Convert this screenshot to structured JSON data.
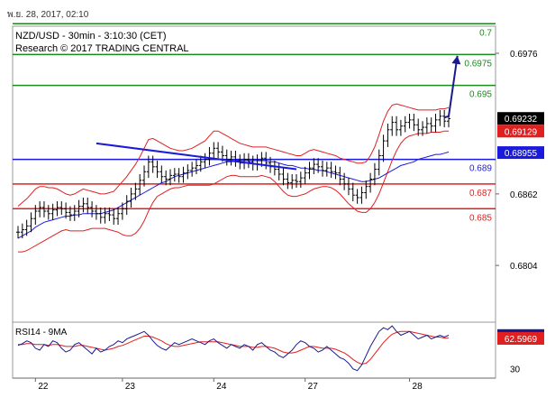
{
  "page": {
    "timestamp": "พ.ย. 28, 2017, 02:10"
  },
  "chart_data": {
    "type": "line",
    "title": "NZD/USD - 30min - 3:10:30 (CET)",
    "subtitle": "Research © 2017 TRADING CENTRAL",
    "x_ticks": [
      "22",
      "23",
      "24",
      "27",
      "28"
    ],
    "price_axis": {
      "ylim": [
        0.6758,
        0.6998
      ],
      "ticks": [
        0.6976,
        0.6862,
        0.6804
      ]
    },
    "current_price": {
      "value": 0.69232,
      "label": "0.69232",
      "color": "#000000"
    },
    "secondary_tag": {
      "value": 0.69129,
      "label": "0.69129",
      "color": "#e02020"
    },
    "ma_tag": {
      "value": 0.68955,
      "label": "0.68955",
      "color": "#1a1adc"
    },
    "levels": [
      {
        "value": 0.7,
        "label": "0.7",
        "color": "#1e8a1e"
      },
      {
        "value": 0.6975,
        "label": "0.6975",
        "color": "#1e8a1e"
      },
      {
        "value": 0.695,
        "label": "0.695",
        "color": "#1e8a1e"
      },
      {
        "value": 0.689,
        "label": "0.689",
        "color": "#1a1adc"
      },
      {
        "value": 0.687,
        "label": "0.687",
        "color": "#e02020"
      },
      {
        "value": 0.685,
        "label": "0.685",
        "color": "#e02020"
      }
    ],
    "close_series": [
      0.6831,
      0.6833,
      0.6836,
      0.6842,
      0.6848,
      0.6851,
      0.6848,
      0.6846,
      0.6849,
      0.6851,
      0.685,
      0.6847,
      0.6845,
      0.6848,
      0.6852,
      0.6854,
      0.6851,
      0.6848,
      0.6846,
      0.6843,
      0.6846,
      0.6845,
      0.6842,
      0.6846,
      0.685,
      0.6856,
      0.6862,
      0.6866,
      0.6873,
      0.688,
      0.6888,
      0.6884,
      0.688,
      0.6876,
      0.6874,
      0.6877,
      0.6878,
      0.6876,
      0.6879,
      0.6881,
      0.6883,
      0.6885,
      0.6888,
      0.689,
      0.6895,
      0.6899,
      0.6896,
      0.6893,
      0.689,
      0.6892,
      0.6889,
      0.6887,
      0.689,
      0.6888,
      0.6886,
      0.6889,
      0.6891,
      0.6887,
      0.6884,
      0.6882,
      0.6878,
      0.6874,
      0.6871,
      0.6873,
      0.6872,
      0.6875,
      0.6879,
      0.6883,
      0.6886,
      0.6884,
      0.6881,
      0.6883,
      0.688,
      0.6879,
      0.6874,
      0.687,
      0.6866,
      0.6861,
      0.6859,
      0.6863,
      0.6868,
      0.6874,
      0.6882,
      0.6893,
      0.6905,
      0.6914,
      0.692,
      0.6914,
      0.6917,
      0.692,
      0.6922,
      0.6918,
      0.6914,
      0.6916,
      0.6919,
      0.6917,
      0.6922,
      0.6925,
      0.6921,
      0.6923
    ],
    "ma_series": [
      0.6826,
      0.6828,
      0.683,
      0.6832,
      0.6835,
      0.6837,
      0.6839,
      0.684,
      0.6841,
      0.6842,
      0.6843,
      0.6844,
      0.6844,
      0.6845,
      0.6845,
      0.6846,
      0.6846,
      0.6846,
      0.6846,
      0.6846,
      0.6847,
      0.6848,
      0.6849,
      0.6851,
      0.6853,
      0.6855,
      0.6857,
      0.6859,
      0.6861,
      0.6863,
      0.6865,
      0.6867,
      0.6869,
      0.6871,
      0.6872,
      0.6874,
      0.6876,
      0.6877,
      0.6878,
      0.6879,
      0.688,
      0.6881,
      0.6882,
      0.6883,
      0.6884,
      0.6885,
      0.6886,
      0.6887,
      0.6888,
      0.6888,
      0.6889,
      0.6889,
      0.6889,
      0.6889,
      0.6889,
      0.6889,
      0.6889,
      0.6889,
      0.6888,
      0.6888,
      0.6887,
      0.6886,
      0.6885,
      0.6885,
      0.6884,
      0.6883,
      0.6883,
      0.6882,
      0.6882,
      0.6881,
      0.6881,
      0.688,
      0.6879,
      0.6878,
      0.6877,
      0.6876,
      0.6875,
      0.6874,
      0.6873,
      0.6872,
      0.6872,
      0.6873,
      0.6874,
      0.6875,
      0.6877,
      0.6879,
      0.6881,
      0.6883,
      0.6885,
      0.6886,
      0.6887,
      0.6888,
      0.689,
      0.6891,
      0.6892,
      0.6893,
      0.6894,
      0.6894,
      0.6895,
      0.6896
    ],
    "bollinger_upper_series": [
      0.6852,
      0.6855,
      0.6858,
      0.6862,
      0.6866,
      0.6868,
      0.6868,
      0.6867,
      0.6867,
      0.6866,
      0.6864,
      0.6862,
      0.6861,
      0.6862,
      0.6864,
      0.6866,
      0.6865,
      0.6864,
      0.6863,
      0.6862,
      0.6862,
      0.6863,
      0.6864,
      0.6868,
      0.6872,
      0.6876,
      0.6881,
      0.6886,
      0.6892,
      0.6899,
      0.6906,
      0.6907,
      0.6905,
      0.6903,
      0.6901,
      0.6899,
      0.6898,
      0.6897,
      0.6897,
      0.6898,
      0.6899,
      0.6901,
      0.6903,
      0.6905,
      0.6909,
      0.6913,
      0.6913,
      0.6911,
      0.6909,
      0.6907,
      0.6905,
      0.6903,
      0.6902,
      0.6901,
      0.69,
      0.69,
      0.69,
      0.69,
      0.6899,
      0.6898,
      0.6897,
      0.6896,
      0.6895,
      0.6894,
      0.6893,
      0.6893,
      0.6895,
      0.6897,
      0.6898,
      0.6897,
      0.6896,
      0.6895,
      0.6894,
      0.6893,
      0.6891,
      0.689,
      0.6889,
      0.6888,
      0.6887,
      0.6887,
      0.6888,
      0.6893,
      0.69,
      0.691,
      0.6921,
      0.6929,
      0.6934,
      0.6935,
      0.6934,
      0.6933,
      0.6932,
      0.6931,
      0.693,
      0.693,
      0.693,
      0.693,
      0.693,
      0.6931,
      0.6931,
      0.6932
    ],
    "bollinger_lower_series": [
      0.6815,
      0.6815,
      0.6816,
      0.6818,
      0.682,
      0.6822,
      0.6824,
      0.6826,
      0.6828,
      0.683,
      0.6832,
      0.6833,
      0.6832,
      0.6832,
      0.6832,
      0.6832,
      0.6833,
      0.6834,
      0.6834,
      0.6834,
      0.6834,
      0.6833,
      0.6832,
      0.6831,
      0.6829,
      0.6828,
      0.6828,
      0.683,
      0.6834,
      0.684,
      0.6848,
      0.6855,
      0.686,
      0.6862,
      0.6864,
      0.6866,
      0.6867,
      0.6867,
      0.6868,
      0.6869,
      0.6869,
      0.6869,
      0.6869,
      0.6869,
      0.6869,
      0.687,
      0.6872,
      0.6874,
      0.6876,
      0.6877,
      0.6877,
      0.6876,
      0.6876,
      0.6876,
      0.6876,
      0.6876,
      0.6877,
      0.6876,
      0.6875,
      0.6872,
      0.6868,
      0.6864,
      0.6861,
      0.686,
      0.686,
      0.6861,
      0.6862,
      0.6864,
      0.6866,
      0.6867,
      0.6868,
      0.6868,
      0.6867,
      0.6865,
      0.6862,
      0.6858,
      0.6854,
      0.6851,
      0.6848,
      0.6847,
      0.6847,
      0.685,
      0.6855,
      0.6862,
      0.6871,
      0.688,
      0.6889,
      0.6897,
      0.6903,
      0.6907,
      0.6909,
      0.691,
      0.6911,
      0.6911,
      0.6911,
      0.6912,
      0.6912,
      0.6912,
      0.6913,
      0.6913
    ],
    "trendlines": [
      {
        "points": [
          [
            18,
            0.6903
          ],
          [
            64,
            0.6882
          ]
        ],
        "color": "#1a1adc"
      }
    ],
    "forecast_arrow": {
      "points": [
        [
          98,
          0.6924
        ],
        [
          99,
          0.6925
        ],
        [
          101,
          0.6974
        ]
      ],
      "color": "#1a1a8c"
    },
    "rsi_panel": {
      "label": "RSI14 - 9MA",
      "ylim": [
        20,
        80
      ],
      "ticks": [
        30
      ],
      "rsi_tag": {
        "value": 65.6711,
        "label": "65.6711",
        "color": "#1a1a8c"
      },
      "ma_tag": {
        "value": 62.5969,
        "label": "62.5969",
        "color": "#e02020"
      },
      "rsi_series": [
        55,
        57,
        60,
        58,
        52,
        50,
        56,
        54,
        60,
        58,
        52,
        48,
        50,
        56,
        58,
        54,
        50,
        46,
        52,
        48,
        50,
        54,
        56,
        60,
        58,
        62,
        64,
        66,
        68,
        70,
        66,
        60,
        55,
        52,
        50,
        54,
        58,
        56,
        58,
        60,
        62,
        60,
        58,
        56,
        60,
        62,
        58,
        55,
        52,
        56,
        54,
        52,
        56,
        54,
        50,
        56,
        58,
        54,
        50,
        48,
        44,
        42,
        46,
        50,
        56,
        60,
        58,
        54,
        52,
        48,
        50,
        54,
        50,
        46,
        42,
        40,
        36,
        30,
        28,
        34,
        44,
        54,
        62,
        70,
        74,
        72,
        76,
        70,
        66,
        68,
        70,
        66,
        62,
        64,
        66,
        62,
        64,
        66,
        64,
        66
      ],
      "ma_series": [
        56,
        56,
        57,
        57,
        56,
        56,
        56,
        55,
        56,
        56,
        55,
        54,
        54,
        54,
        55,
        55,
        54,
        53,
        52,
        51,
        50,
        51,
        52,
        54,
        55,
        57,
        59,
        61,
        63,
        65,
        65,
        64,
        62,
        60,
        57,
        55,
        54,
        54,
        55,
        56,
        57,
        58,
        59,
        59,
        59,
        59,
        59,
        58,
        57,
        56,
        55,
        54,
        54,
        54,
        53,
        53,
        54,
        54,
        53,
        52,
        50,
        48,
        47,
        47,
        48,
        50,
        52,
        54,
        54,
        53,
        52,
        52,
        52,
        51,
        49,
        47,
        44,
        40,
        37,
        35,
        36,
        40,
        46,
        52,
        58,
        63,
        67,
        69,
        70,
        70,
        70,
        69,
        68,
        67,
        66,
        65,
        64,
        64,
        63,
        63
      ]
    }
  }
}
